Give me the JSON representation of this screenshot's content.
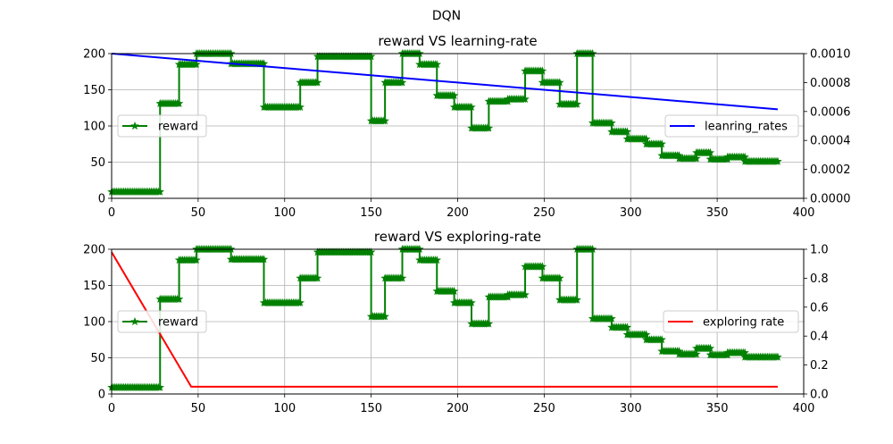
{
  "figure": {
    "suptitle": "DQN"
  },
  "chart_data": [
    {
      "type": "line",
      "title": "reward VS learning-rate",
      "xlabel": "",
      "ylabel": "",
      "ylabel_right": "",
      "xlim": [
        0,
        400
      ],
      "ylim": [
        0,
        200
      ],
      "ylim_right": [
        0,
        0.001
      ],
      "xticks": [
        "0",
        "50",
        "100",
        "150",
        "200",
        "250",
        "300",
        "350",
        "400"
      ],
      "yticks": [
        "0",
        "50",
        "100",
        "150",
        "200"
      ],
      "yticks_right": [
        "0.0000",
        "0.0002",
        "0.0004",
        "0.0006",
        "0.0008",
        "0.0010"
      ],
      "grid": true,
      "series": [
        {
          "name": "reward",
          "axis": "left",
          "color": "#008000",
          "marker": "star",
          "step_points": [
            [
              0,
              9
            ],
            [
              28,
              9
            ],
            [
              28,
              131
            ],
            [
              39,
              131
            ],
            [
              39,
              185
            ],
            [
              49,
              185
            ],
            [
              49,
              200
            ],
            [
              69,
              200
            ],
            [
              69,
              186
            ],
            [
              88,
              186
            ],
            [
              88,
              126
            ],
            [
              109,
              126
            ],
            [
              109,
              160
            ],
            [
              119,
              160
            ],
            [
              119,
              196
            ],
            [
              150,
              196
            ],
            [
              150,
              107
            ],
            [
              158,
              107
            ],
            [
              158,
              160
            ],
            [
              168,
              160
            ],
            [
              168,
              200
            ],
            [
              178,
              200
            ],
            [
              178,
              185
            ],
            [
              188,
              185
            ],
            [
              188,
              142
            ],
            [
              198,
              142
            ],
            [
              198,
              126
            ],
            [
              208,
              126
            ],
            [
              208,
              97
            ],
            [
              218,
              97
            ],
            [
              218,
              134
            ],
            [
              229,
              134
            ],
            [
              229,
              137
            ],
            [
              239,
              137
            ],
            [
              239,
              176
            ],
            [
              249,
              176
            ],
            [
              249,
              160
            ],
            [
              259,
              160
            ],
            [
              259,
              130
            ],
            [
              269,
              130
            ],
            [
              269,
              200
            ],
            [
              278,
              200
            ],
            [
              278,
              104
            ],
            [
              289,
              104
            ],
            [
              289,
              92
            ],
            [
              298,
              92
            ],
            [
              298,
              82
            ],
            [
              309,
              82
            ],
            [
              309,
              75
            ],
            [
              318,
              75
            ],
            [
              318,
              59
            ],
            [
              328,
              59
            ],
            [
              328,
              55
            ],
            [
              338,
              55
            ],
            [
              338,
              63
            ],
            [
              346,
              63
            ],
            [
              346,
              54
            ],
            [
              356,
              54
            ],
            [
              356,
              57
            ],
            [
              366,
              57
            ],
            [
              366,
              51
            ],
            [
              385,
              51
            ]
          ]
        },
        {
          "name": "leanring_rates",
          "axis": "right",
          "color": "#0000ff",
          "points": [
            [
              0,
              0.001
            ],
            [
              385,
              0.000615
            ]
          ]
        }
      ],
      "legend_left": "center-left",
      "legend_right": "center-right"
    },
    {
      "type": "line",
      "title": "reward VS exploring-rate",
      "xlabel": "",
      "ylabel": "",
      "ylabel_right": "",
      "xlim": [
        0,
        400
      ],
      "ylim": [
        0,
        200
      ],
      "ylim_right": [
        0,
        1
      ],
      "xticks": [
        "0",
        "50",
        "100",
        "150",
        "200",
        "250",
        "300",
        "350",
        "400"
      ],
      "yticks": [
        "0",
        "50",
        "100",
        "150",
        "200"
      ],
      "yticks_right": [
        "0.0",
        "0.2",
        "0.4",
        "0.6",
        "0.8",
        "1.0"
      ],
      "grid": true,
      "series": [
        {
          "name": "reward",
          "axis": "left",
          "color": "#008000",
          "marker": "star",
          "step_points": [
            [
              0,
              9
            ],
            [
              28,
              9
            ],
            [
              28,
              131
            ],
            [
              39,
              131
            ],
            [
              39,
              185
            ],
            [
              49,
              185
            ],
            [
              49,
              200
            ],
            [
              69,
              200
            ],
            [
              69,
              186
            ],
            [
              88,
              186
            ],
            [
              88,
              126
            ],
            [
              109,
              126
            ],
            [
              109,
              160
            ],
            [
              119,
              160
            ],
            [
              119,
              196
            ],
            [
              150,
              196
            ],
            [
              150,
              107
            ],
            [
              158,
              107
            ],
            [
              158,
              160
            ],
            [
              168,
              160
            ],
            [
              168,
              200
            ],
            [
              178,
              200
            ],
            [
              178,
              185
            ],
            [
              188,
              185
            ],
            [
              188,
              142
            ],
            [
              198,
              142
            ],
            [
              198,
              126
            ],
            [
              208,
              126
            ],
            [
              208,
              97
            ],
            [
              218,
              97
            ],
            [
              218,
              134
            ],
            [
              229,
              134
            ],
            [
              229,
              137
            ],
            [
              239,
              137
            ],
            [
              239,
              176
            ],
            [
              249,
              176
            ],
            [
              249,
              160
            ],
            [
              259,
              160
            ],
            [
              259,
              130
            ],
            [
              269,
              130
            ],
            [
              269,
              200
            ],
            [
              278,
              200
            ],
            [
              278,
              104
            ],
            [
              289,
              104
            ],
            [
              289,
              92
            ],
            [
              298,
              92
            ],
            [
              298,
              82
            ],
            [
              309,
              82
            ],
            [
              309,
              75
            ],
            [
              318,
              75
            ],
            [
              318,
              59
            ],
            [
              328,
              59
            ],
            [
              328,
              55
            ],
            [
              338,
              55
            ],
            [
              338,
              63
            ],
            [
              346,
              63
            ],
            [
              346,
              54
            ],
            [
              356,
              54
            ],
            [
              356,
              57
            ],
            [
              366,
              57
            ],
            [
              366,
              51
            ],
            [
              385,
              51
            ]
          ]
        },
        {
          "name": "exploring rate",
          "axis": "right",
          "color": "#ff0000",
          "points": [
            [
              0,
              0.98
            ],
            [
              46,
              0.05
            ],
            [
              385,
              0.05
            ]
          ]
        }
      ],
      "legend_left": "center-left",
      "legend_right": "center-right"
    }
  ]
}
